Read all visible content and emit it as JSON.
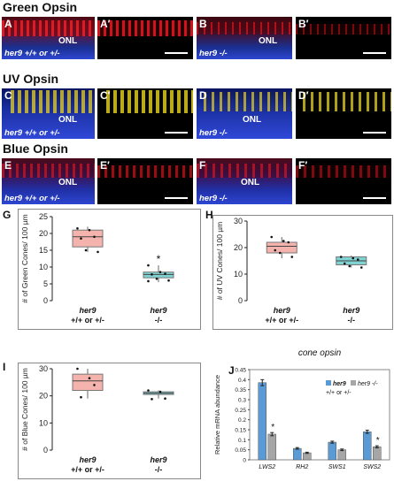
{
  "sections": [
    {
      "title": "Green Opsin",
      "labels": [
        "A",
        "A′",
        "B",
        "B′"
      ],
      "onl": "ONL",
      "wt": "her9 +/+ or +/-",
      "mut": "her9 -/-",
      "color": "#e01818"
    },
    {
      "title": "UV Opsin",
      "labels": [
        "C",
        "C′",
        "D",
        "D′"
      ],
      "onl": "ONL",
      "wt": "her9 +/+ or +/-",
      "mut": "her9 -/-",
      "color": "#e8d020"
    },
    {
      "title": "Blue Opsin",
      "labels": [
        "E",
        "E′",
        "F",
        "F′"
      ],
      "onl": "ONL",
      "wt": "her9 +/+ or +/-",
      "mut": "her9 -/-",
      "color": "#d01818"
    }
  ],
  "chart_data": [
    {
      "panel": "G",
      "type": "box",
      "ylabel": "# of Green Cones/ 100 µm",
      "ylim": [
        0,
        25
      ],
      "yticks": [
        0,
        5,
        10,
        15,
        20,
        25
      ],
      "categories": [
        {
          "top": "her9",
          "bottom": "+/+ or +/-"
        },
        {
          "top": "her9",
          "bottom": "-/-"
        }
      ],
      "boxes": [
        {
          "q1": 16,
          "median": 19,
          "q3": 21,
          "min": 14.5,
          "max": 22,
          "fill": "#f4b3ad",
          "points": [
            21.5,
            21,
            19,
            18.5,
            15,
            14.5
          ]
        },
        {
          "q1": 6.8,
          "median": 7.8,
          "q3": 8.5,
          "min": 5.5,
          "max": 10.5,
          "fill": "#7fd3d3",
          "points": [
            10.5,
            8.5,
            8,
            7.8,
            6.5,
            6,
            5.8
          ]
        }
      ],
      "annotation": "*"
    },
    {
      "panel": "H",
      "type": "box",
      "ylabel": "# of UV Cones/ 100 µm",
      "ylim": [
        0,
        30
      ],
      "yticks": [
        0,
        10,
        20,
        30
      ],
      "categories": [
        {
          "top": "her9",
          "bottom": "+/+ or +/-"
        },
        {
          "top": "her9",
          "bottom": "-/-"
        }
      ],
      "boxes": [
        {
          "q1": 18,
          "median": 20.5,
          "q3": 22,
          "min": 16,
          "max": 24,
          "fill": "#f4b3ad",
          "points": [
            24,
            22.5,
            22,
            19,
            18,
            16.5
          ]
        },
        {
          "q1": 13.5,
          "median": 15,
          "q3": 16.5,
          "min": 12.5,
          "max": 17,
          "fill": "#7fd3d3",
          "points": [
            16.5,
            16,
            15.5,
            14,
            13,
            12.5
          ]
        }
      ]
    },
    {
      "panel": "I",
      "type": "box",
      "ylabel": "# of Blue Cones/ 100 µm",
      "ylim": [
        0,
        30
      ],
      "yticks": [
        0,
        10,
        20,
        30
      ],
      "categories": [
        {
          "top": "her9",
          "bottom": "+/+ or +/-"
        },
        {
          "top": "her9",
          "bottom": "-/-"
        }
      ],
      "boxes": [
        {
          "q1": 22,
          "median": 25.5,
          "q3": 28,
          "min": 19,
          "max": 30,
          "fill": "#f4b3ad",
          "points": [
            30,
            26.5,
            24,
            19.5
          ]
        },
        {
          "q1": 20.5,
          "median": 21,
          "q3": 21.5,
          "min": 19,
          "max": 22,
          "fill": "#7fd3d3",
          "points": [
            22,
            21.5,
            19,
            18.8
          ]
        }
      ]
    },
    {
      "panel": "J",
      "type": "bar",
      "title": "cone opsin",
      "ylabel": "Relative mRNA abundance",
      "ylim": [
        0,
        0.45
      ],
      "yticks": [
        "0",
        "0.05",
        "0.1",
        "0.15",
        "0.2",
        "0.25",
        "0.3",
        "0.35",
        "0.4",
        "0.45"
      ],
      "categories": [
        "LWS2",
        "RH2",
        "SWS1",
        "SWS2"
      ],
      "series": [
        {
          "name": "her9 +/+ or +/-",
          "color": "#5b9bd5",
          "values": [
            0.385,
            0.057,
            0.088,
            0.14
          ],
          "errors": [
            0.015,
            0.004,
            0.005,
            0.008
          ]
        },
        {
          "name": "her9 -/-",
          "color": "#a6a6a6",
          "values": [
            0.128,
            0.035,
            0.05,
            0.065
          ],
          "errors": [
            0.008,
            0.003,
            0.004,
            0.005
          ]
        }
      ],
      "significance": [
        "*",
        "",
        "",
        "*"
      ],
      "legend": {
        "s1_top": "her9",
        "s1_bottom": "+/+ or +/-",
        "s2": "her9 -/-"
      }
    }
  ]
}
